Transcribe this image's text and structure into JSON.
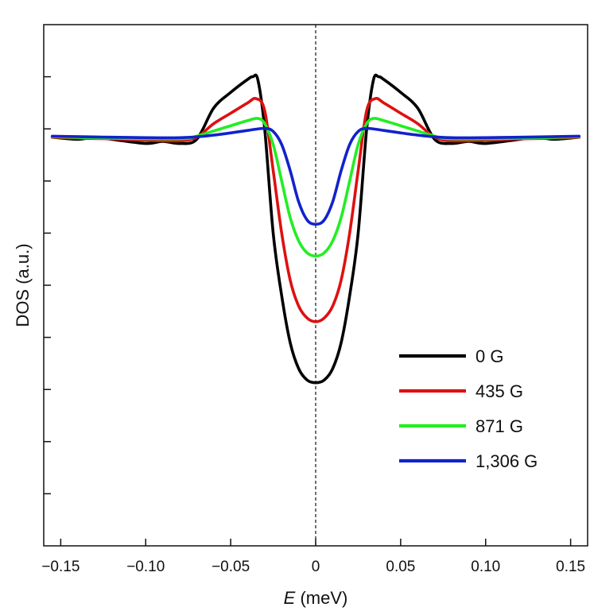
{
  "chart_data": {
    "type": "line",
    "xlabel_var": "E",
    "xlabel_unit": " (meV)",
    "ylabel": "DOS (a.u.)",
    "xlim": [
      -0.16,
      0.16
    ],
    "ylim": [
      0,
      1
    ],
    "x_ticks": [
      -0.15,
      -0.1,
      -0.05,
      0,
      0.05,
      0.1,
      0.15
    ],
    "x_tick_labels": [
      "−0.15",
      "−0.10",
      "−0.05",
      "0",
      "0.05",
      "0.10",
      "0.15"
    ],
    "y_tick_values": [
      0.9,
      0.8,
      0.7,
      0.6,
      0.5,
      0.4,
      0.3,
      0.2,
      0.1
    ],
    "y_tick_labels_shown": false,
    "reference_line": {
      "x": 0,
      "style": "dashed"
    },
    "legend_position": "lower-right",
    "grid": false,
    "series": [
      {
        "name": "0 G",
        "color": "#000000",
        "points": [
          [
            -0.155,
            0.784
          ],
          [
            -0.14,
            0.78
          ],
          [
            -0.13,
            0.784
          ],
          [
            -0.12,
            0.78
          ],
          [
            -0.1,
            0.772
          ],
          [
            -0.09,
            0.776
          ],
          [
            -0.08,
            0.772
          ],
          [
            -0.07,
            0.78
          ],
          [
            -0.06,
            0.84
          ],
          [
            -0.05,
            0.87
          ],
          [
            -0.04,
            0.895
          ],
          [
            -0.037,
            0.9
          ],
          [
            -0.034,
            0.894
          ],
          [
            -0.03,
            0.8
          ],
          [
            -0.025,
            0.6
          ],
          [
            -0.02,
            0.48
          ],
          [
            -0.015,
            0.39
          ],
          [
            -0.01,
            0.34
          ],
          [
            -0.005,
            0.318
          ],
          [
            0,
            0.313
          ],
          [
            0.005,
            0.318
          ],
          [
            0.01,
            0.34
          ],
          [
            0.015,
            0.39
          ],
          [
            0.02,
            0.48
          ],
          [
            0.025,
            0.6
          ],
          [
            0.03,
            0.8
          ],
          [
            0.034,
            0.894
          ],
          [
            0.037,
            0.9
          ],
          [
            0.04,
            0.895
          ],
          [
            0.05,
            0.87
          ],
          [
            0.06,
            0.84
          ],
          [
            0.07,
            0.78
          ],
          [
            0.08,
            0.772
          ],
          [
            0.09,
            0.776
          ],
          [
            0.1,
            0.772
          ],
          [
            0.12,
            0.78
          ],
          [
            0.13,
            0.784
          ],
          [
            0.14,
            0.78
          ],
          [
            0.155,
            0.784
          ]
        ]
      },
      {
        "name": "435 G",
        "color": "#dd1111",
        "points": [
          [
            -0.155,
            0.784
          ],
          [
            -0.14,
            0.782
          ],
          [
            -0.12,
            0.781
          ],
          [
            -0.1,
            0.778
          ],
          [
            -0.08,
            0.777
          ],
          [
            -0.07,
            0.784
          ],
          [
            -0.06,
            0.81
          ],
          [
            -0.05,
            0.83
          ],
          [
            -0.04,
            0.85
          ],
          [
            -0.035,
            0.858
          ],
          [
            -0.03,
            0.835
          ],
          [
            -0.025,
            0.72
          ],
          [
            -0.02,
            0.6
          ],
          [
            -0.015,
            0.51
          ],
          [
            -0.01,
            0.46
          ],
          [
            -0.005,
            0.437
          ],
          [
            0,
            0.43
          ],
          [
            0.005,
            0.437
          ],
          [
            0.01,
            0.46
          ],
          [
            0.015,
            0.51
          ],
          [
            0.02,
            0.6
          ],
          [
            0.025,
            0.72
          ],
          [
            0.03,
            0.835
          ],
          [
            0.035,
            0.858
          ],
          [
            0.04,
            0.85
          ],
          [
            0.05,
            0.83
          ],
          [
            0.06,
            0.81
          ],
          [
            0.07,
            0.784
          ],
          [
            0.08,
            0.777
          ],
          [
            0.1,
            0.778
          ],
          [
            0.12,
            0.781
          ],
          [
            0.14,
            0.782
          ],
          [
            0.155,
            0.784
          ]
        ]
      },
      {
        "name": "871 G",
        "color": "#22ee22",
        "points": [
          [
            -0.155,
            0.785
          ],
          [
            -0.12,
            0.782
          ],
          [
            -0.08,
            0.781
          ],
          [
            -0.07,
            0.786
          ],
          [
            -0.06,
            0.796
          ],
          [
            -0.05,
            0.806
          ],
          [
            -0.04,
            0.816
          ],
          [
            -0.034,
            0.82
          ],
          [
            -0.03,
            0.81
          ],
          [
            -0.025,
            0.77
          ],
          [
            -0.02,
            0.7
          ],
          [
            -0.015,
            0.63
          ],
          [
            -0.01,
            0.585
          ],
          [
            -0.005,
            0.562
          ],
          [
            0,
            0.556
          ],
          [
            0.005,
            0.562
          ],
          [
            0.01,
            0.585
          ],
          [
            0.015,
            0.63
          ],
          [
            0.02,
            0.7
          ],
          [
            0.025,
            0.77
          ],
          [
            0.03,
            0.81
          ],
          [
            0.034,
            0.82
          ],
          [
            0.04,
            0.816
          ],
          [
            0.05,
            0.806
          ],
          [
            0.06,
            0.796
          ],
          [
            0.07,
            0.786
          ],
          [
            0.08,
            0.781
          ],
          [
            0.12,
            0.782
          ],
          [
            0.155,
            0.785
          ]
        ]
      },
      {
        "name": "1,306 G",
        "color": "#1122cc",
        "points": [
          [
            -0.155,
            0.786
          ],
          [
            -0.12,
            0.784
          ],
          [
            -0.08,
            0.783
          ],
          [
            -0.06,
            0.788
          ],
          [
            -0.04,
            0.797
          ],
          [
            -0.03,
            0.801
          ],
          [
            -0.025,
            0.795
          ],
          [
            -0.02,
            0.77
          ],
          [
            -0.015,
            0.72
          ],
          [
            -0.01,
            0.66
          ],
          [
            -0.005,
            0.625
          ],
          [
            0,
            0.617
          ],
          [
            0.005,
            0.625
          ],
          [
            0.01,
            0.66
          ],
          [
            0.015,
            0.72
          ],
          [
            0.02,
            0.77
          ],
          [
            0.025,
            0.795
          ],
          [
            0.03,
            0.801
          ],
          [
            0.04,
            0.797
          ],
          [
            0.06,
            0.788
          ],
          [
            0.08,
            0.783
          ],
          [
            0.12,
            0.784
          ],
          [
            0.155,
            0.786
          ]
        ]
      }
    ]
  }
}
